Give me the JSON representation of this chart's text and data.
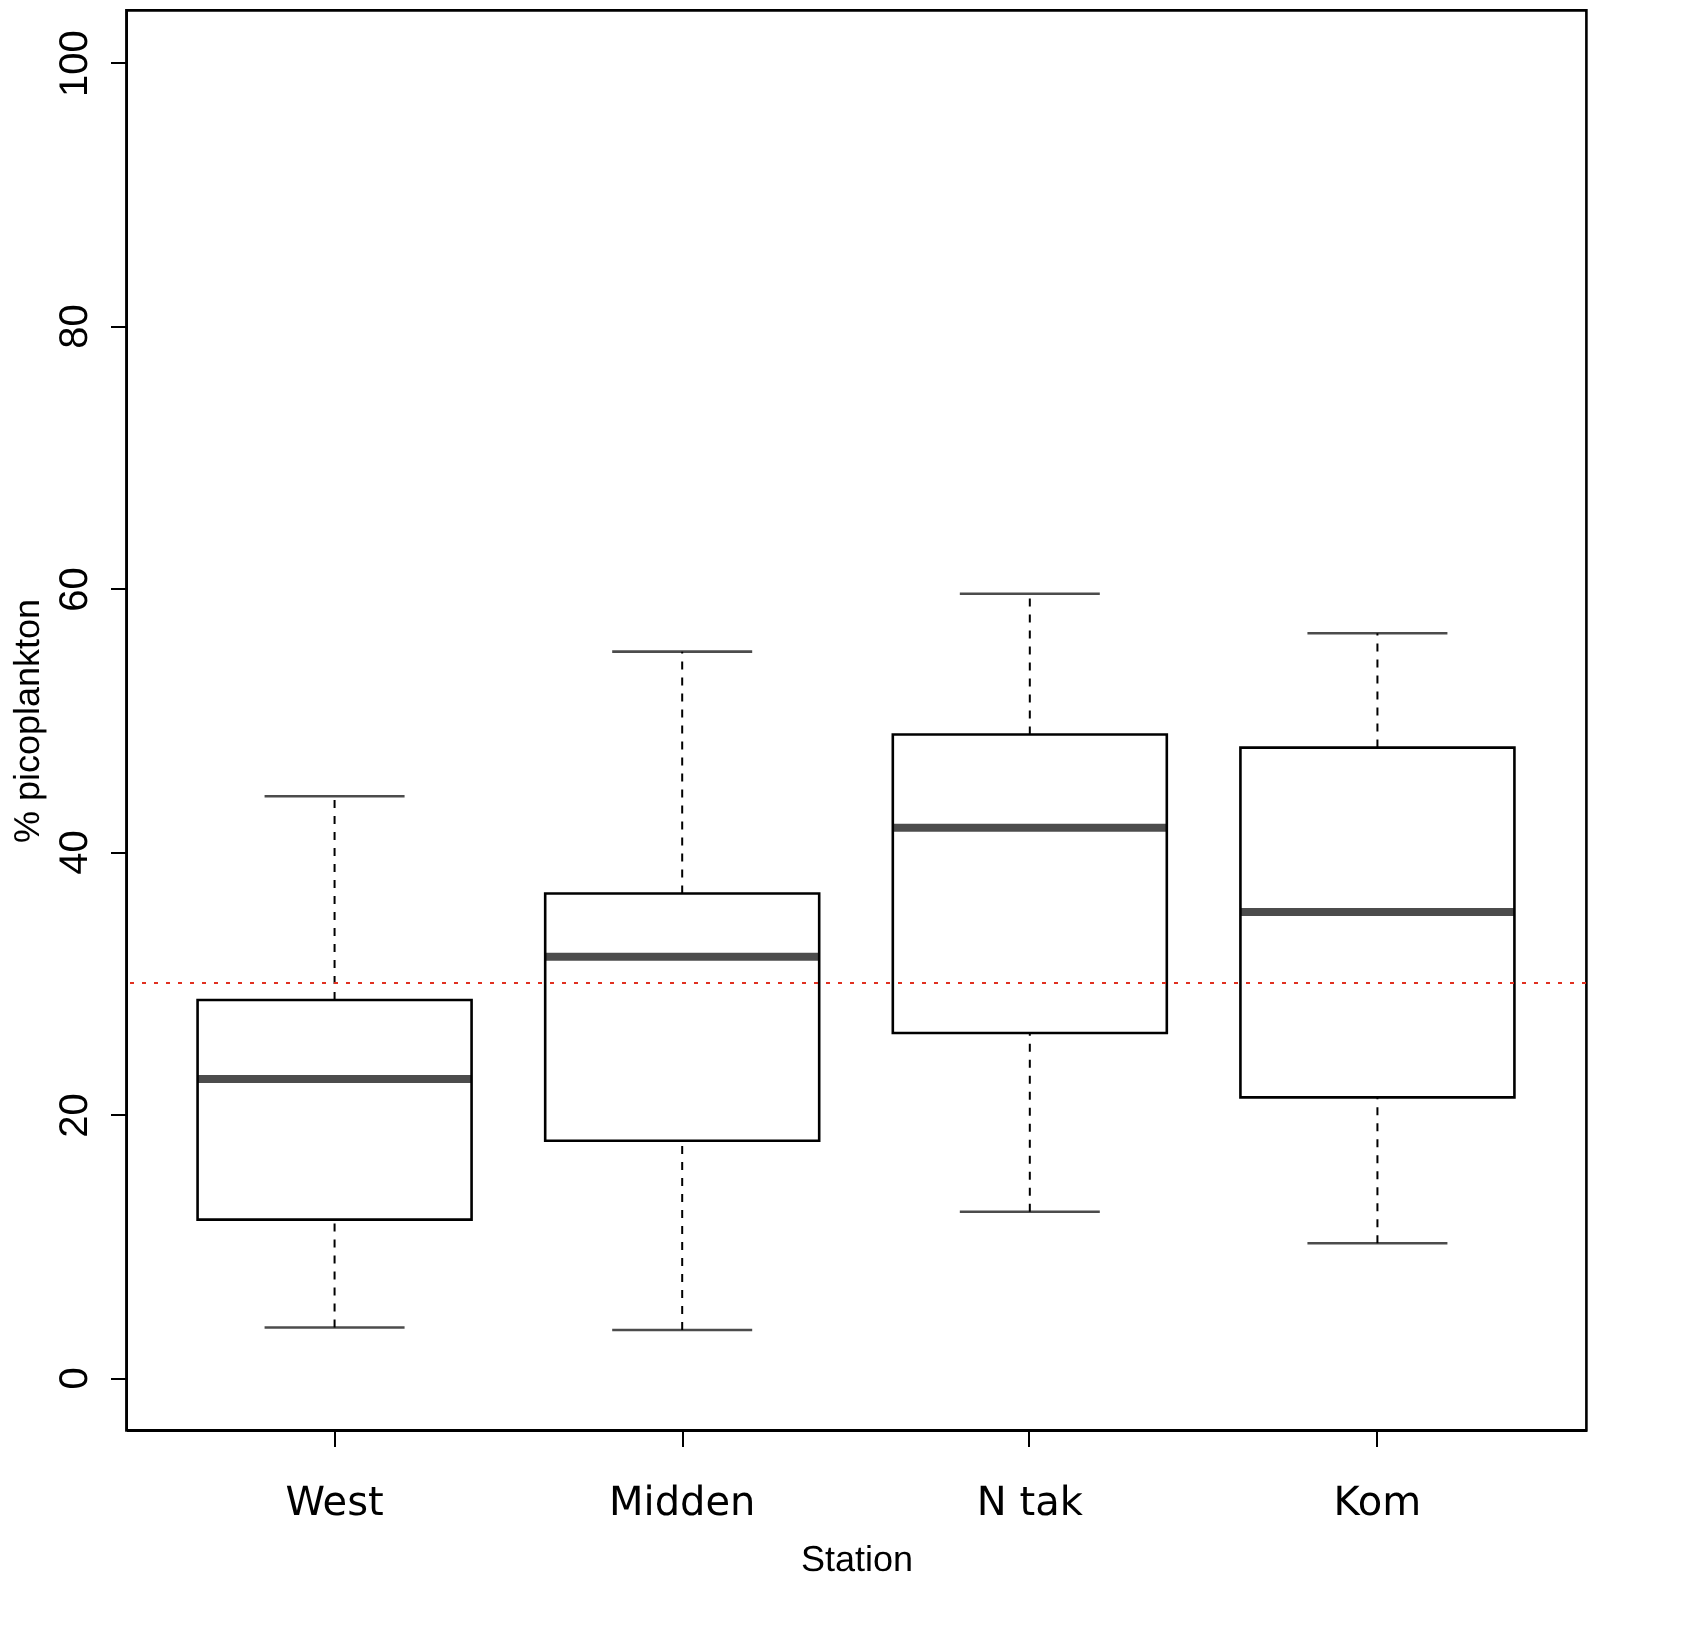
{
  "chart_data": {
    "type": "box",
    "xlabel": "Station",
    "ylabel": "% picoplankton",
    "categories": [
      "West",
      "Midden",
      "N tak",
      "Kom"
    ],
    "boxes": [
      {
        "low": 3.8,
        "q1": 12,
        "median": 22.7,
        "q3": 28.7,
        "high": 44.2
      },
      {
        "low": 3.6,
        "q1": 18,
        "median": 32,
        "q3": 36.8,
        "high": 55.2
      },
      {
        "low": 12.6,
        "q1": 26.2,
        "median": 41.8,
        "q3": 48.9,
        "high": 59.6
      },
      {
        "low": 10.2,
        "q1": 21.3,
        "median": 35.4,
        "q3": 47.9,
        "high": 56.6
      }
    ],
    "ylim": [
      -4,
      104
    ],
    "yticks": [
      0,
      20,
      40,
      60,
      80,
      100
    ],
    "ref_lines": [
      {
        "axis": "y",
        "value": 30,
        "color": "#e03020",
        "line_style": "dotted"
      }
    ],
    "grid": false
  }
}
